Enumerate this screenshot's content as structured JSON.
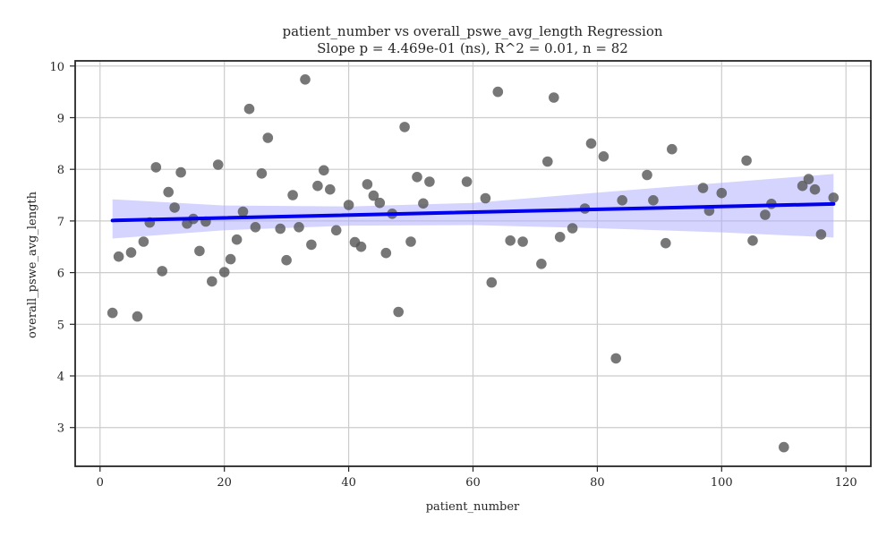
{
  "chart_data": {
    "type": "scatter",
    "title": "patient_number vs overall_pswe_avg_length Regression",
    "subtitle": "Slope p = 4.469e-01 (ns), R^2 = 0.01, n = 82",
    "xlabel": "patient_number",
    "ylabel": "overall_pswe_avg_length",
    "xlim": [
      -4,
      124
    ],
    "ylim": [
      2.25,
      10.1
    ],
    "xticks": [
      0,
      20,
      40,
      60,
      80,
      100,
      120
    ],
    "yticks": [
      3,
      4,
      5,
      6,
      7,
      8,
      9,
      10
    ],
    "grid": true,
    "point_color": "#555555",
    "line_color": "#0000ee",
    "band_color": "#aaaaff",
    "points": [
      [
        2,
        5.22
      ],
      [
        3,
        6.31
      ],
      [
        5,
        6.39
      ],
      [
        6,
        5.15
      ],
      [
        7,
        6.6
      ],
      [
        8,
        6.97
      ],
      [
        9,
        8.04
      ],
      [
        10,
        6.03
      ],
      [
        11,
        7.56
      ],
      [
        12,
        7.26
      ],
      [
        13,
        7.94
      ],
      [
        14,
        6.95
      ],
      [
        15,
        7.04
      ],
      [
        16,
        6.42
      ],
      [
        17,
        6.99
      ],
      [
        18,
        5.83
      ],
      [
        19,
        8.09
      ],
      [
        20,
        6.01
      ],
      [
        21,
        6.26
      ],
      [
        22,
        6.64
      ],
      [
        23,
        7.18
      ],
      [
        24,
        9.17
      ],
      [
        25,
        6.88
      ],
      [
        26,
        7.92
      ],
      [
        27,
        8.61
      ],
      [
        29,
        6.85
      ],
      [
        30,
        6.24
      ],
      [
        31,
        7.5
      ],
      [
        32,
        6.88
      ],
      [
        33,
        9.74
      ],
      [
        34,
        6.54
      ],
      [
        35,
        7.68
      ],
      [
        36,
        7.98
      ],
      [
        37,
        7.61
      ],
      [
        38,
        6.82
      ],
      [
        40,
        7.31
      ],
      [
        41,
        6.59
      ],
      [
        42,
        6.5
      ],
      [
        43,
        7.71
      ],
      [
        44,
        7.49
      ],
      [
        45,
        7.35
      ],
      [
        46,
        6.38
      ],
      [
        47,
        7.14
      ],
      [
        48,
        5.24
      ],
      [
        49,
        8.82
      ],
      [
        50,
        6.6
      ],
      [
        51,
        7.85
      ],
      [
        52,
        7.34
      ],
      [
        53,
        7.76
      ],
      [
        59,
        7.76
      ],
      [
        62,
        7.44
      ],
      [
        63,
        5.81
      ],
      [
        64,
        9.5
      ],
      [
        66,
        6.62
      ],
      [
        68,
        6.6
      ],
      [
        71,
        6.17
      ],
      [
        72,
        8.15
      ],
      [
        73,
        9.39
      ],
      [
        74,
        6.69
      ],
      [
        76,
        6.86
      ],
      [
        78,
        7.24
      ],
      [
        79,
        8.5
      ],
      [
        81,
        8.25
      ],
      [
        83,
        4.34
      ],
      [
        84,
        7.4
      ],
      [
        88,
        7.89
      ],
      [
        89,
        7.4
      ],
      [
        91,
        6.57
      ],
      [
        92,
        8.39
      ],
      [
        97,
        7.64
      ],
      [
        98,
        7.2
      ],
      [
        100,
        7.54
      ],
      [
        104,
        8.17
      ],
      [
        105,
        6.62
      ],
      [
        107,
        7.12
      ],
      [
        108,
        7.33
      ],
      [
        110,
        2.62
      ],
      [
        113,
        7.68
      ],
      [
        114,
        7.81
      ],
      [
        115,
        7.61
      ],
      [
        116,
        6.74
      ],
      [
        118,
        7.45
      ]
    ],
    "regression": {
      "x": [
        2,
        118
      ],
      "y": [
        7.01,
        7.33
      ]
    },
    "confidence_band": {
      "x": [
        2,
        20,
        40,
        60,
        80,
        100,
        118
      ],
      "lower": [
        6.66,
        6.82,
        6.91,
        6.92,
        6.86,
        6.78,
        6.68
      ],
      "upper": [
        7.42,
        7.3,
        7.28,
        7.35,
        7.55,
        7.74,
        7.91
      ]
    }
  }
}
